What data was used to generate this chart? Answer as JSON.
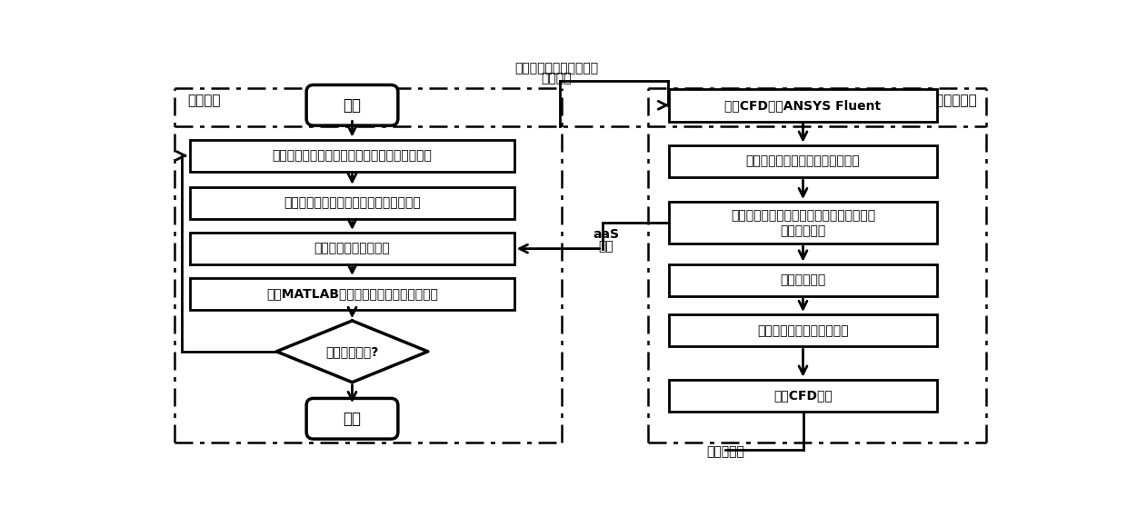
{
  "bg_color": "#ffffff",
  "left_label": "遗传算法",
  "right_label": "计算流体力学",
  "start_text": "开始",
  "end_text": "结束",
  "box1_text": "初始化或更新吸热器的孔隙率、孔径和入口流速",
  "box2_text": "计算吸热器的反射、透射损失和修正系数",
  "box3_text": "评价当前吸热器的性能",
  "box4_text": "利用MATLAB遗传算法工具箱进行遗传操作",
  "diamond_text": "优化算法收敛?",
  "right_box1_text": "调用CFD软件ANSYS Fluent",
  "right_box2_text": "确定太阳辐射在吸热器内部的分布",
  "right_box3_line1": "根据吸热器结构参数计算流动换热经验参数",
  "right_box3_line2": "设置边界条件",
  "right_box4_text": "求解控制方程",
  "right_box5_text": "求解收敛、计算吸热器效率",
  "right_box6_text": "暂停CFD程序",
  "aas_line1": "aaS",
  "aas_line2": "模式",
  "bottom_label": "吸热器效率",
  "top_line1": "孔隙率、孔径、入口流速",
  "top_line2": "修正系数"
}
